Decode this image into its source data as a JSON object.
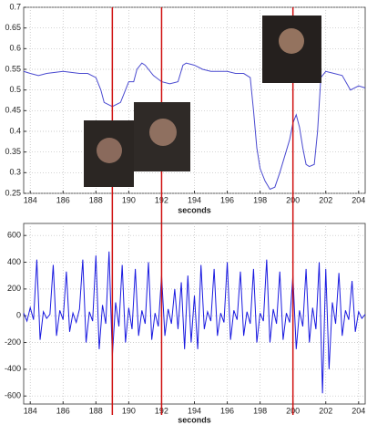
{
  "chart_data": [
    {
      "type": "line",
      "xlabel": "seconds",
      "xlim": [
        183.6,
        204.4
      ],
      "xticks": [
        184,
        186,
        188,
        190,
        192,
        194,
        196,
        198,
        200,
        202,
        204
      ],
      "ylim": [
        0.25,
        0.7
      ],
      "yticks": [
        0.25,
        0.3,
        0.35,
        0.4,
        0.45,
        0.5,
        0.55,
        0.6,
        0.65,
        0.7
      ],
      "grid": true,
      "vlines": [
        189,
        192,
        200
      ],
      "vline_color": "#d01010",
      "series": [
        {
          "color": "#4a4ad0",
          "x": [
            183.6,
            184,
            184.5,
            185,
            186,
            187,
            187.5,
            188,
            188.3,
            188.5,
            189,
            189.5,
            189.8,
            190,
            190.3,
            190.5,
            190.8,
            191,
            191.5,
            192,
            192.5,
            193,
            193.3,
            193.5,
            194,
            194.5,
            195,
            196,
            196.5,
            197,
            197.4,
            197.6,
            197.8,
            198,
            198.3,
            198.6,
            198.9,
            199.2,
            199.5,
            199.8,
            200,
            200.2,
            200.4,
            200.6,
            200.8,
            201,
            201.3,
            201.5,
            201.7,
            202,
            202.5,
            203,
            203.5,
            204,
            204.4
          ],
          "values": [
            0.545,
            0.54,
            0.535,
            0.54,
            0.545,
            0.54,
            0.54,
            0.53,
            0.5,
            0.47,
            0.46,
            0.47,
            0.5,
            0.52,
            0.52,
            0.55,
            0.565,
            0.56,
            0.535,
            0.52,
            0.515,
            0.52,
            0.56,
            0.565,
            0.56,
            0.55,
            0.545,
            0.545,
            0.54,
            0.54,
            0.53,
            0.45,
            0.36,
            0.31,
            0.28,
            0.26,
            0.265,
            0.3,
            0.34,
            0.38,
            0.42,
            0.44,
            0.41,
            0.36,
            0.32,
            0.315,
            0.32,
            0.4,
            0.53,
            0.545,
            0.54,
            0.535,
            0.5,
            0.51,
            0.505
          ]
        }
      ]
    },
    {
      "type": "line",
      "xlabel": "seconds",
      "xlim": [
        183.6,
        204.4
      ],
      "xticks": [
        184,
        186,
        188,
        190,
        192,
        194,
        196,
        198,
        200,
        202,
        204
      ],
      "ylim": [
        -660,
        690
      ],
      "yticks": [
        -600,
        -400,
        -200,
        0,
        200,
        400,
        600
      ],
      "grid": true,
      "vlines": [
        189,
        192,
        200
      ],
      "vline_color": "#d01010",
      "series": [
        {
          "color": "#1a1ae0",
          "x": [
            183.6,
            183.8,
            184,
            184.2,
            184.4,
            184.6,
            184.8,
            185,
            185.2,
            185.4,
            185.6,
            185.8,
            186,
            186.2,
            186.4,
            186.6,
            186.8,
            187,
            187.2,
            187.4,
            187.6,
            187.8,
            188,
            188.2,
            188.4,
            188.6,
            188.8,
            189,
            189.2,
            189.4,
            189.6,
            189.8,
            190,
            190.2,
            190.4,
            190.6,
            190.8,
            191,
            191.2,
            191.4,
            191.6,
            191.8,
            192,
            192.2,
            192.4,
            192.6,
            192.8,
            193,
            193.2,
            193.4,
            193.6,
            193.8,
            194,
            194.2,
            194.4,
            194.6,
            194.8,
            195,
            195.2,
            195.4,
            195.6,
            195.8,
            196,
            196.2,
            196.4,
            196.6,
            196.8,
            197,
            197.2,
            197.4,
            197.6,
            197.8,
            198,
            198.2,
            198.4,
            198.6,
            198.8,
            199,
            199.2,
            199.4,
            199.6,
            199.8,
            200,
            200.2,
            200.4,
            200.6,
            200.8,
            201,
            201.2,
            201.4,
            201.6,
            201.8,
            202,
            202.2,
            202.4,
            202.6,
            202.8,
            203,
            203.2,
            203.4,
            203.6,
            203.8,
            204,
            204.2,
            204.4
          ],
          "values": [
            20,
            -40,
            60,
            -30,
            420,
            -180,
            30,
            -20,
            10,
            380,
            -150,
            40,
            -30,
            330,
            -120,
            20,
            -50,
            50,
            420,
            -200,
            30,
            -40,
            450,
            -250,
            80,
            -60,
            480,
            -300,
            100,
            -80,
            380,
            -200,
            60,
            -100,
            350,
            -150,
            40,
            -60,
            400,
            -180,
            20,
            -80,
            300,
            -150,
            50,
            -60,
            200,
            -100,
            250,
            -250,
            300,
            -200,
            150,
            -250,
            380,
            -100,
            30,
            -40,
            350,
            -150,
            20,
            -50,
            400,
            -180,
            40,
            -30,
            330,
            -150,
            30,
            -60,
            350,
            -200,
            20,
            -40,
            420,
            -200,
            50,
            -60,
            330,
            -180,
            20,
            -50,
            300,
            -250,
            40,
            -80,
            350,
            -200,
            60,
            -100,
            400,
            -580,
            350,
            -400,
            100,
            -60,
            320,
            -150,
            40,
            -30,
            260,
            -120,
            30,
            -20,
            10
          ]
        }
      ]
    }
  ]
}
